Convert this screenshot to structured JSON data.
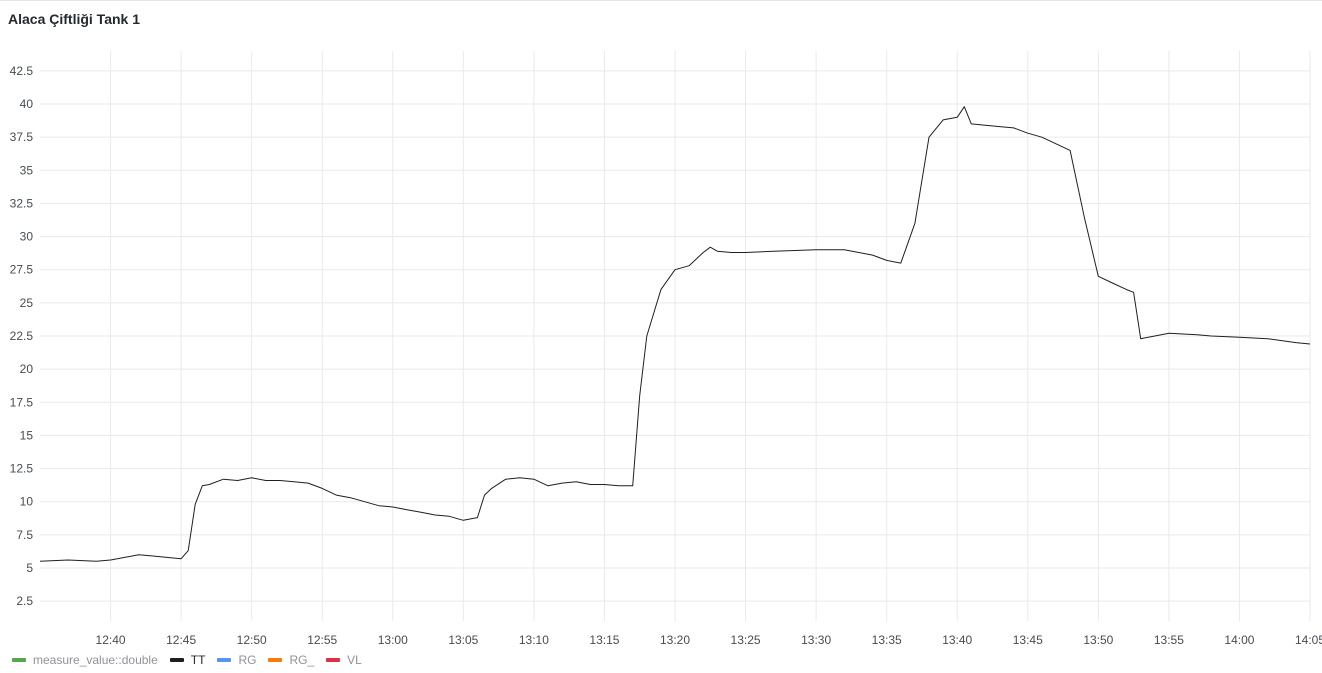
{
  "panel": {
    "title": "Alaca Çiftliği Tank 1"
  },
  "chart_data": {
    "type": "line",
    "title": "Alaca Çiftliği Tank 1",
    "xlabel": "",
    "ylabel": "",
    "x_ticks": [
      "12:40",
      "12:45",
      "12:50",
      "12:55",
      "13:00",
      "13:05",
      "13:10",
      "13:15",
      "13:20",
      "13:25",
      "13:30",
      "13:35",
      "13:40",
      "13:45",
      "13:50",
      "13:55",
      "14:00",
      "14:05"
    ],
    "y_ticks": [
      2.5,
      5,
      7.5,
      10,
      12.5,
      15,
      17.5,
      20,
      22.5,
      25,
      27.5,
      30,
      32.5,
      35,
      37.5,
      40,
      42.5
    ],
    "xlim": [
      "12:35",
      "14:05"
    ],
    "ylim": [
      1,
      44
    ],
    "grid": true,
    "legend_position": "bottom-left",
    "series": [
      {
        "name": "measure_value::double",
        "color": "#56a64b",
        "values": []
      },
      {
        "name": "TT",
        "color": "#1f1f1f",
        "x": [
          "12:35",
          "12:37",
          "12:39",
          "12:40",
          "12:41",
          "12:42",
          "12:43",
          "12:44",
          "12:45",
          "12:45.5",
          "12:46",
          "12:46.5",
          "12:47",
          "12:48",
          "12:49",
          "12:50",
          "12:51",
          "12:52",
          "12:53",
          "12:54",
          "12:55",
          "12:56",
          "12:57",
          "12:58",
          "12:59",
          "13:00",
          "13:01",
          "13:02",
          "13:03",
          "13:04",
          "13:05",
          "13:06",
          "13:06.5",
          "13:07",
          "13:08",
          "13:09",
          "13:10",
          "13:11",
          "13:12",
          "13:13",
          "13:14",
          "13:15",
          "13:16",
          "13:17",
          "13:17.5",
          "13:18",
          "13:19",
          "13:20",
          "13:21",
          "13:22",
          "13:22.5",
          "13:23",
          "13:24",
          "13:25",
          "13:27",
          "13:30",
          "13:32",
          "13:34",
          "13:35",
          "13:36",
          "13:37",
          "13:38",
          "13:39",
          "13:40",
          "13:40.5",
          "13:41",
          "13:42",
          "13:43",
          "13:44",
          "13:45",
          "13:46",
          "13:47",
          "13:48",
          "13:49",
          "13:50",
          "13:51",
          "13:52",
          "13:52.5",
          "13:53",
          "13:54",
          "13:55",
          "13:57",
          "13:58",
          "14:00",
          "14:02",
          "14:04",
          "14:05"
        ],
        "values": [
          5.5,
          5.6,
          5.5,
          5.6,
          5.8,
          6.0,
          5.9,
          5.8,
          5.7,
          6.3,
          9.8,
          11.2,
          11.3,
          11.7,
          11.6,
          11.8,
          11.6,
          11.6,
          11.5,
          11.4,
          11.0,
          10.5,
          10.3,
          10.0,
          9.7,
          9.6,
          9.4,
          9.2,
          9.0,
          8.9,
          8.6,
          8.8,
          10.5,
          11.0,
          11.7,
          11.8,
          11.7,
          11.2,
          11.4,
          11.5,
          11.3,
          11.3,
          11.2,
          11.2,
          18.0,
          22.5,
          26.0,
          27.5,
          27.8,
          28.8,
          29.2,
          28.9,
          28.8,
          28.8,
          28.9,
          29.0,
          29.0,
          28.6,
          28.2,
          28.0,
          31.0,
          37.5,
          38.8,
          39.0,
          39.8,
          38.5,
          38.4,
          38.3,
          38.2,
          37.8,
          37.5,
          37.0,
          36.5,
          31.5,
          27.0,
          26.5,
          26.0,
          25.8,
          22.3,
          22.5,
          22.7,
          22.6,
          22.5,
          22.4,
          22.3,
          22.0,
          21.9
        ]
      },
      {
        "name": "RG",
        "color": "#5794f2",
        "values": []
      },
      {
        "name": "RG_",
        "color": "#ff780a",
        "values": []
      },
      {
        "name": "VL",
        "color": "#e02f44",
        "values": []
      }
    ]
  }
}
